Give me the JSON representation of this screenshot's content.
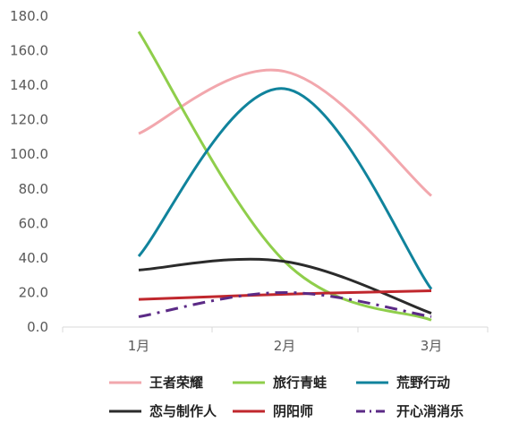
{
  "chart_data": {
    "type": "line",
    "title": "",
    "xlabel": "",
    "ylabel": "",
    "categories": [
      "1月",
      "2月",
      "3月"
    ],
    "ylim": [
      0,
      180
    ],
    "yticks": [
      "0.0",
      "20.0",
      "40.0",
      "60.0",
      "80.0",
      "100.0",
      "120.0",
      "140.0",
      "160.0",
      "180.0"
    ],
    "grid": false,
    "smooth": true,
    "legend_position": "bottom",
    "series": [
      {
        "name": "王者荣耀",
        "values": [
          112,
          148,
          76
        ],
        "color": "#f2a7ad",
        "dash": "solid"
      },
      {
        "name": "旅行青蛙",
        "values": [
          171,
          38,
          4
        ],
        "color": "#8fce4b",
        "dash": "solid"
      },
      {
        "name": "荒野行动",
        "values": [
          41,
          138,
          22
        ],
        "color": "#10839c",
        "dash": "solid"
      },
      {
        "name": "恋与制作人",
        "values": [
          33,
          38,
          8
        ],
        "color": "#2b2b2b",
        "dash": "solid"
      },
      {
        "name": "阴阳师",
        "values": [
          16,
          19,
          21
        ],
        "color": "#c0272d",
        "dash": "solid"
      },
      {
        "name": "开心消消乐",
        "values": [
          6,
          20,
          6
        ],
        "color": "#5b2a86",
        "dash": "dashdot"
      }
    ]
  }
}
